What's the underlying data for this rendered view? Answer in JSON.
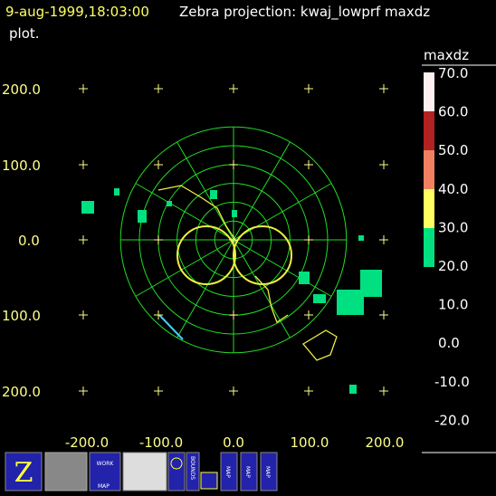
{
  "header": {
    "timestamp": "9-aug-1999,18:03:00",
    "title": "Zebra projection: kwaj_lowprf maxdz",
    "title_cont": "plot."
  },
  "plot": {
    "y_labels": [
      "200.0",
      "100.0",
      "0.0",
      "100.0",
      "200.0"
    ],
    "x_labels": [
      "-200.0",
      "-100.0",
      "0.0",
      "100.0",
      "200.0"
    ]
  },
  "colorbar": {
    "title": "maxdz",
    "labels": [
      "70.0",
      "60.0",
      "50.0",
      "40.0",
      "30.0",
      "20.0",
      "10.0",
      "0.0",
      "-10.0",
      "-20.0"
    ]
  },
  "toolbar": {
    "work": "WORK",
    "work_map": "MAP",
    "bounds": "BOUNDS",
    "map1": "MAP",
    "map2": "MAP",
    "map3": "MAP"
  }
}
